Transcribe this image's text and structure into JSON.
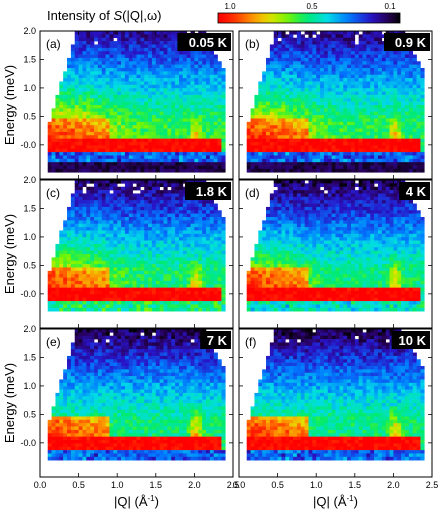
{
  "chart_data": {
    "type": "heatmap",
    "colorbar": {
      "label_prefix": "Intensity of ",
      "label_S": "S",
      "label_args": "(|Q|,ω)",
      "ticks": [
        "1.0",
        "0.5",
        "0.1"
      ],
      "colors": [
        "#ff0000",
        "#ff6600",
        "#ffcc00",
        "#66ff00",
        "#00ee66",
        "#00ddee",
        "#0066ff",
        "#3300cc",
        "#220055",
        "#000000"
      ]
    },
    "y_axis_label": "Energy (meV)",
    "x_axis_label_Q": "|Q|",
    "x_axis_label_unit": " (Å",
    "x_axis_label_sup": "-1",
    "x_axis_label_close": ")",
    "xlim": [
      0.0,
      2.5
    ],
    "ylim": [
      -0.6,
      2.0
    ],
    "x_ticks": [
      "0.0",
      "0.5",
      "1.0",
      "1.5",
      "2.0",
      "2.5"
    ],
    "y_ticks": [
      "-0.0",
      "0.5",
      "1.0",
      "1.5",
      "2.0"
    ],
    "y_tick_values": [
      0.0,
      0.5,
      1.0,
      1.5,
      2.0
    ],
    "x_tick_values": [
      0.0,
      0.5,
      1.0,
      1.5,
      2.0,
      2.5
    ],
    "panels": [
      {
        "letter": "(a)",
        "temperature": "0.05 K"
      },
      {
        "letter": "(b)",
        "temperature": "0.9 K"
      },
      {
        "letter": "(c)",
        "temperature": "1.8 K"
      },
      {
        "letter": "(d)",
        "temperature": "4 K"
      },
      {
        "letter": "(e)",
        "temperature": "7 K"
      },
      {
        "letter": "(f)",
        "temperature": "10 K"
      }
    ]
  }
}
